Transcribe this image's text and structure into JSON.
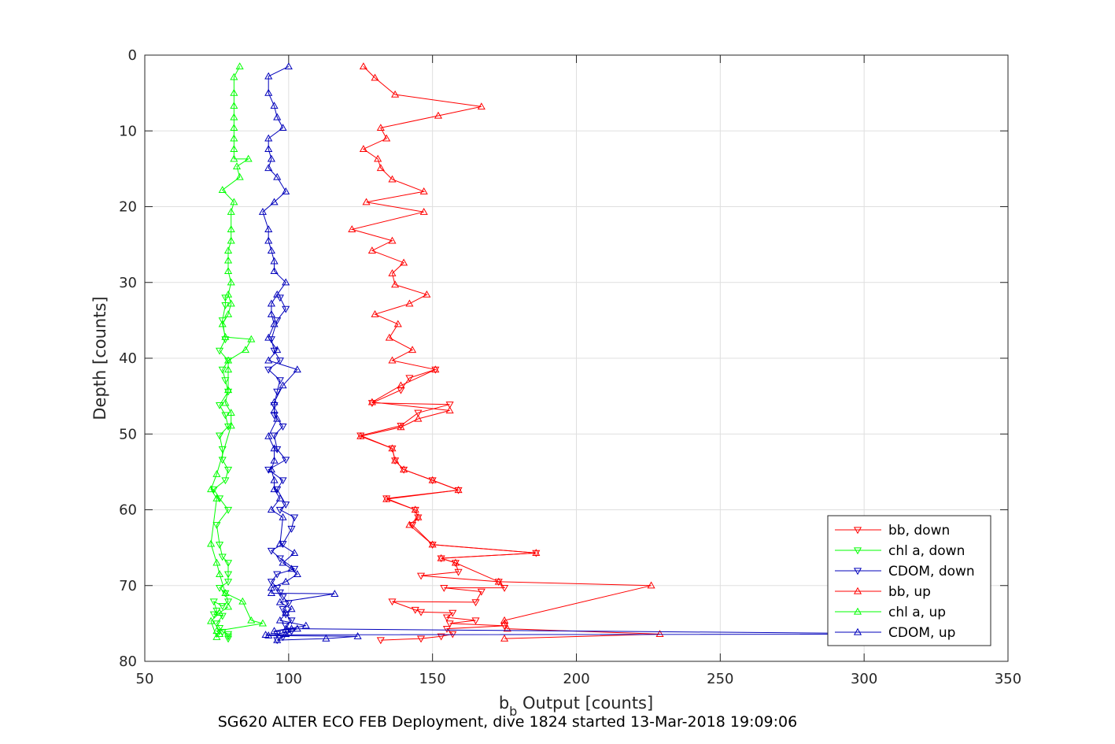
{
  "chart_data": {
    "type": "line",
    "title": "",
    "caption": "SG620 ALTER ECO FEB Deployment, dive 1824 started 13-Mar-2018 19:09:06",
    "xlabel_main": "b",
    "xlabel_sub": "b",
    "xlabel_rest": " Output [counts]",
    "ylabel": "Depth [counts]",
    "xlim": [
      50,
      350
    ],
    "ylim": [
      0,
      80
    ],
    "y_reversed": true,
    "xticks": [
      50,
      100,
      150,
      200,
      250,
      300,
      350
    ],
    "yticks": [
      0,
      10,
      20,
      30,
      40,
      50,
      60,
      70,
      80
    ],
    "grid": true,
    "legend_position": "bottom-right",
    "series": [
      {
        "name": "bb, down",
        "color": "#ff0000",
        "marker": "triangle-down",
        "x": [
          132,
          146,
          153,
          157,
          155,
          175,
          156,
          165,
          155,
          157,
          146,
          144,
          136,
          165,
          167,
          154,
          175,
          173,
          146,
          159,
          158,
          153,
          186,
          150,
          143,
          145,
          144,
          134,
          159,
          150,
          140,
          137,
          136,
          125,
          139,
          145,
          156,
          129,
          139,
          142,
          151
        ],
        "y": [
          77.2,
          77.0,
          76.7,
          76.4,
          75.7,
          75.3,
          75.0,
          74.6,
          74.2,
          73.6,
          73.5,
          73.2,
          72.1,
          72.2,
          70.8,
          70.3,
          70.3,
          69.5,
          68.7,
          68.2,
          67.0,
          66.4,
          65.7,
          64.6,
          62.0,
          61.0,
          60.0,
          58.5,
          57.4,
          56.1,
          54.7,
          53.5,
          51.9,
          50.2,
          48.9,
          47.2,
          46.1,
          45.9,
          44.2,
          42.6,
          41.5
        ]
      },
      {
        "name": "chl a, down",
        "color": "#00ff00",
        "marker": "triangle-down",
        "x": [
          79,
          79,
          79,
          77,
          76,
          75,
          77,
          74,
          75,
          74,
          77,
          79,
          78,
          76,
          79,
          79,
          79,
          77,
          76,
          75,
          79,
          76,
          74,
          78,
          79,
          77,
          77,
          76,
          79,
          78,
          76,
          79,
          78,
          77,
          79,
          76,
          78,
          77,
          78,
          78
        ],
        "y": [
          77.0,
          76.7,
          76.4,
          76.1,
          75.6,
          75.0,
          74.0,
          73.8,
          73.3,
          72.1,
          72.7,
          72.1,
          71.0,
          70.3,
          69.5,
          68.5,
          67.0,
          66.2,
          64.6,
          62.0,
          60.0,
          58.5,
          57.3,
          56.1,
          54.7,
          53.4,
          52.0,
          50.2,
          49.0,
          47.5,
          46.2,
          44.4,
          42.9,
          41.5,
          40.3,
          39.0,
          37.5,
          35.0,
          33.0,
          32.0
        ]
      },
      {
        "name": "CDOM, down",
        "color": "#0000bb",
        "marker": "triangle-down",
        "x": [
          96,
          98,
          96,
          101,
          99,
          101,
          99,
          98,
          100,
          98,
          97,
          96,
          94,
          96,
          102,
          97,
          94,
          98,
          101,
          102,
          97,
          99,
          96,
          98,
          93,
          99,
          96,
          95,
          98,
          95,
          95,
          96,
          97,
          93,
          97,
          95,
          94,
          96,
          99,
          97
        ],
        "y": [
          77.2,
          76.8,
          76.4,
          76.0,
          75.3,
          74.6,
          73.8,
          73.1,
          72.3,
          71.5,
          70.9,
          70.3,
          69.5,
          68.5,
          67.8,
          66.4,
          65.4,
          64.5,
          62.5,
          61.0,
          60.0,
          59.3,
          57.3,
          56.1,
          54.7,
          53.4,
          52.0,
          50.2,
          49.0,
          47.5,
          46.2,
          44.4,
          42.9,
          41.5,
          40.3,
          39.0,
          37.5,
          35.0,
          33.5,
          32.0
        ]
      },
      {
        "name": "bb, up",
        "color": "#ff0000",
        "marker": "triangle-up",
        "x": [
          126,
          130,
          137,
          167,
          152,
          132,
          134,
          126,
          131,
          132,
          136,
          147,
          127,
          147,
          122,
          136,
          129,
          140,
          136,
          137,
          148,
          142,
          130,
          138,
          135,
          143,
          136,
          151,
          139,
          129,
          156,
          145,
          139,
          125,
          136,
          137,
          140,
          150,
          159,
          134,
          144,
          145,
          142,
          150,
          186,
          153,
          158,
          173,
          226,
          175,
          175,
          176,
          229,
          175
        ],
        "y": [
          1.5,
          3.0,
          5.2,
          6.8,
          8.0,
          9.6,
          11.0,
          12.4,
          13.7,
          14.9,
          16.4,
          18.0,
          19.4,
          20.7,
          23.0,
          24.5,
          25.8,
          27.4,
          28.8,
          30.3,
          31.6,
          32.8,
          34.2,
          35.5,
          37.3,
          38.9,
          40.3,
          41.5,
          43.6,
          45.8,
          46.9,
          48.0,
          49.1,
          50.3,
          51.9,
          53.5,
          54.7,
          56.1,
          57.4,
          58.6,
          60.0,
          61.0,
          62.0,
          64.6,
          65.7,
          66.4,
          67.0,
          69.5,
          70.0,
          74.6,
          75.0,
          75.7,
          76.4,
          77.0
        ]
      },
      {
        "name": "chl a, up",
        "color": "#00ff00",
        "marker": "triangle-up",
        "x": [
          83,
          81,
          81,
          81,
          81,
          81,
          81,
          81,
          81,
          86,
          82,
          83,
          77,
          81,
          80,
          80,
          80,
          79,
          79,
          79,
          80,
          79,
          80,
          79,
          77,
          78,
          87,
          85,
          79,
          79,
          79,
          78,
          80,
          80,
          75,
          73,
          75,
          73,
          75,
          76,
          78,
          84,
          87,
          91,
          75,
          76,
          75,
          73,
          76,
          79
        ],
        "y": [
          1.5,
          2.9,
          5.0,
          6.7,
          8.2,
          9.6,
          11.0,
          12.4,
          13.7,
          13.7,
          14.7,
          16.1,
          17.8,
          19.4,
          20.7,
          23.0,
          24.5,
          25.8,
          27.1,
          28.5,
          30.0,
          31.6,
          32.8,
          34.2,
          35.5,
          37.2,
          37.5,
          38.9,
          40.3,
          41.5,
          44.2,
          45.9,
          47.2,
          48.9,
          55.3,
          57.3,
          58.5,
          64.5,
          67.0,
          68.5,
          71.0,
          72.1,
          74.6,
          75.0,
          76.0,
          76.4,
          76.8,
          74.7,
          73.6,
          72.8
        ]
      },
      {
        "name": "CDOM, up",
        "color": "#0000bb",
        "marker": "triangle-up",
        "x": [
          100,
          93,
          93,
          95,
          96,
          98,
          93,
          93,
          94,
          93,
          96,
          99,
          95,
          91,
          93,
          93,
          94,
          95,
          95,
          99,
          96,
          94,
          94,
          95,
          93,
          96,
          93,
          103,
          98,
          95,
          95,
          96,
          93,
          95,
          95,
          94,
          95,
          95,
          97,
          94,
          98,
          97,
          102,
          98,
          101,
          103,
          99,
          94,
          94,
          116,
          97,
          101,
          99,
          97,
          106,
          95,
          103,
          99,
          99,
          101,
          330,
          92,
          93,
          124,
          113,
          96
        ],
        "y": [
          1.5,
          2.8,
          5.0,
          6.7,
          8.2,
          9.6,
          11.0,
          12.4,
          13.7,
          14.9,
          16.1,
          18.0,
          19.4,
          20.7,
          23.0,
          24.5,
          25.8,
          27.2,
          28.5,
          30.0,
          31.6,
          32.8,
          34.2,
          35.5,
          37.3,
          38.9,
          40.3,
          41.5,
          43.6,
          45.8,
          46.9,
          48.0,
          50.3,
          51.9,
          53.5,
          54.7,
          56.1,
          57.3,
          58.5,
          60.0,
          61.0,
          64.5,
          65.7,
          67.0,
          67.8,
          68.5,
          69.5,
          70.3,
          71.0,
          71.1,
          72.2,
          73.1,
          73.6,
          74.6,
          75.3,
          76.0,
          75.7,
          76.4,
          75.8,
          75.7,
          76.4,
          76.5,
          76.6,
          76.7,
          77.0,
          77.2
        ]
      }
    ]
  }
}
